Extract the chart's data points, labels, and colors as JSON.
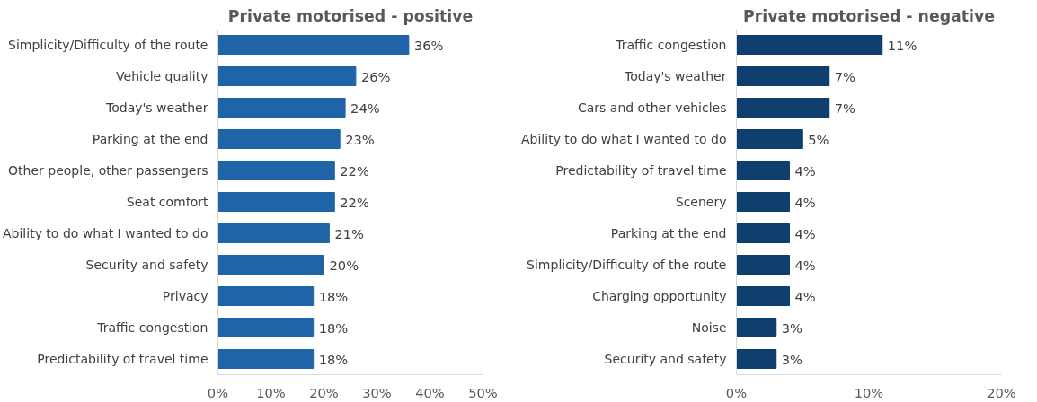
{
  "chart_data": [
    {
      "type": "bar",
      "orientation": "horizontal",
      "title": "Private motorised - positive",
      "categories": [
        "Simplicity/Difficulty of the route",
        "Vehicle quality",
        "Today's weather",
        "Parking at the end",
        "Other people, other passengers",
        "Seat comfort",
        "Ability to do what I wanted to do",
        "Security and safety",
        "Privacy",
        "Traffic congestion",
        "Predictability of travel time"
      ],
      "values": [
        36,
        26,
        24,
        23,
        22,
        22,
        21,
        20,
        18,
        18,
        18
      ],
      "value_labels": [
        "36%",
        "26%",
        "24%",
        "23%",
        "22%",
        "22%",
        "21%",
        "20%",
        "18%",
        "18%",
        "18%"
      ],
      "color": "#1f64a6",
      "xlim": [
        0,
        50
      ],
      "xticks": [
        {
          "value": 0,
          "label": "0%"
        },
        {
          "value": 10,
          "label": "10%"
        },
        {
          "value": 20,
          "label": "20%"
        },
        {
          "value": 30,
          "label": "30%"
        },
        {
          "value": 40,
          "label": "40%"
        },
        {
          "value": 50,
          "label": "50%"
        }
      ],
      "grid": false
    },
    {
      "type": "bar",
      "orientation": "horizontal",
      "title": "Private motorised - negative",
      "categories": [
        "Traffic congestion",
        "Today's weather",
        "Cars and other vehicles",
        "Ability to do what I wanted to do",
        "Predictability of travel time",
        "Scenery",
        "Parking at the end",
        "Simplicity/Difficulty of the route",
        "Charging opportunity",
        "Noise",
        "Security and safety"
      ],
      "values": [
        11,
        7,
        7,
        5,
        4,
        4,
        4,
        4,
        4,
        3,
        3
      ],
      "value_labels": [
        "11%",
        "7%",
        "7%",
        "5%",
        "4%",
        "4%",
        "4%",
        "4%",
        "4%",
        "3%",
        "3%"
      ],
      "color": "#0e3f6e",
      "xlim": [
        0,
        20
      ],
      "xticks": [
        {
          "value": 0,
          "label": "0%"
        },
        {
          "value": 10,
          "label": "10%"
        },
        {
          "value": 20,
          "label": "20%"
        }
      ],
      "grid": false
    }
  ]
}
